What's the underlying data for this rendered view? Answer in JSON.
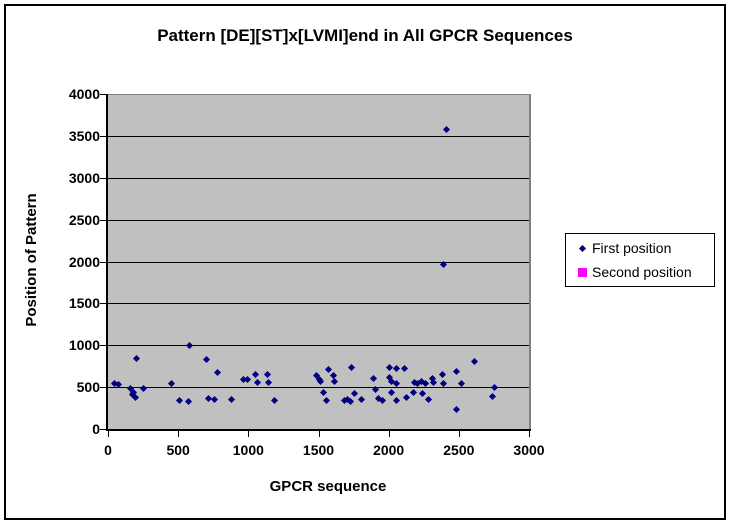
{
  "chart_data": {
    "type": "scatter",
    "title": "Pattern [DE][ST]x[LVMI]end in All GPCR Sequences",
    "xlabel": "GPCR sequence",
    "ylabel": "Position of Pattern",
    "xlim": [
      0,
      3000
    ],
    "ylim": [
      0,
      4000
    ],
    "xticks": [
      0,
      500,
      1000,
      1500,
      2000,
      2500,
      3000
    ],
    "yticks": [
      0,
      500,
      1000,
      1500,
      2000,
      2500,
      3000,
      3500,
      4000
    ],
    "grid": "horizontal-on",
    "legend_position": "right",
    "plot_bg_color": "#c0c0c0",
    "gridline_color": "#000000",
    "series": [
      {
        "name": "First position",
        "color": "#000080",
        "marker": "diamond",
        "points": [
          [
            40,
            545
          ],
          [
            70,
            540
          ],
          [
            160,
            490
          ],
          [
            170,
            420
          ],
          [
            175,
            445
          ],
          [
            190,
            385
          ],
          [
            200,
            845
          ],
          [
            250,
            495
          ],
          [
            450,
            555
          ],
          [
            505,
            345
          ],
          [
            570,
            335
          ],
          [
            575,
            1000
          ],
          [
            700,
            830
          ],
          [
            710,
            365
          ],
          [
            755,
            360
          ],
          [
            775,
            680
          ],
          [
            880,
            360
          ],
          [
            965,
            595
          ],
          [
            990,
            600
          ],
          [
            1050,
            655
          ],
          [
            1060,
            560
          ],
          [
            1135,
            655
          ],
          [
            1140,
            560
          ],
          [
            1185,
            350
          ],
          [
            1480,
            650
          ],
          [
            1500,
            600
          ],
          [
            1510,
            570
          ],
          [
            1530,
            440
          ],
          [
            1555,
            345
          ],
          [
            1570,
            715
          ],
          [
            1605,
            640
          ],
          [
            1610,
            570
          ],
          [
            1680,
            350
          ],
          [
            1705,
            360
          ],
          [
            1725,
            335
          ],
          [
            1735,
            740
          ],
          [
            1750,
            430
          ],
          [
            1805,
            360
          ],
          [
            1890,
            610
          ],
          [
            1900,
            480
          ],
          [
            1925,
            370
          ],
          [
            1950,
            350
          ],
          [
            2000,
            740
          ],
          [
            2000,
            620
          ],
          [
            2020,
            570
          ],
          [
            2020,
            440
          ],
          [
            2055,
            730
          ],
          [
            2055,
            550
          ],
          [
            2055,
            345
          ],
          [
            2110,
            730
          ],
          [
            2120,
            380
          ],
          [
            2175,
            440
          ],
          [
            2180,
            560
          ],
          [
            2205,
            550
          ],
          [
            2230,
            570
          ],
          [
            2235,
            430
          ],
          [
            2260,
            550
          ],
          [
            2280,
            360
          ],
          [
            2310,
            610
          ],
          [
            2315,
            560
          ],
          [
            2380,
            655
          ],
          [
            2390,
            550
          ],
          [
            2390,
            1970
          ],
          [
            2410,
            3580
          ],
          [
            2480,
            690
          ],
          [
            2480,
            240
          ],
          [
            2515,
            550
          ],
          [
            2610,
            815
          ],
          [
            2735,
            395
          ],
          [
            2750,
            500
          ]
        ]
      },
      {
        "name": "Second position",
        "color": "#ff00ff",
        "marker": "square",
        "points": []
      }
    ]
  }
}
